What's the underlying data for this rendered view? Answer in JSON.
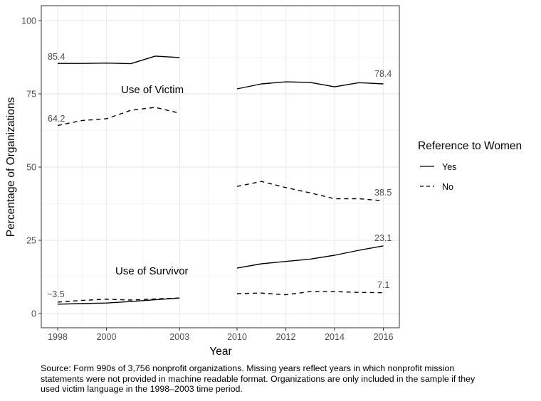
{
  "chart_data": {
    "type": "line",
    "xlabel": "Year",
    "ylabel": "Percentage of Organizations",
    "ylim": [
      -5,
      103
    ],
    "y_ticks": [
      "0",
      "25",
      "50",
      "75",
      "100"
    ],
    "y_tick_values": [
      0,
      25,
      50,
      75,
      100
    ],
    "x_ticks": [
      "1998",
      "2000",
      "2003",
      "2010",
      "2012",
      "2014",
      "2016"
    ],
    "x_tick_values": [
      1998,
      2000,
      2003,
      2010,
      2012,
      2014,
      2016
    ],
    "grid": true,
    "legend": {
      "title": "Reference to Women",
      "position": "right",
      "entries": [
        {
          "label": "Yes",
          "linestyle": "solid"
        },
        {
          "label": "No",
          "linestyle": "dashed"
        }
      ]
    },
    "group_labels": [
      "Use of Victim",
      "Use of Survivor"
    ],
    "annotations": [
      "85.4",
      "64.2",
      "~3.5",
      "78.4",
      "38.5",
      "23.1",
      "7.1"
    ],
    "series": [
      {
        "name": "Victim - Yes",
        "group": "Use of Victim",
        "reference": "Yes",
        "linestyle": "solid",
        "segments": [
          {
            "x": [
              1998,
              1999,
              2000,
              2001,
              2002,
              2003
            ],
            "y": [
              85.4,
              85.4,
              85.5,
              85.3,
              87.9,
              87.4
            ]
          },
          {
            "x": [
              2010,
              2011,
              2012,
              2013,
              2014,
              2015,
              2016
            ],
            "y": [
              76.7,
              78.4,
              79.1,
              78.9,
              77.4,
              78.8,
              78.4
            ]
          }
        ]
      },
      {
        "name": "Victim - No",
        "group": "Use of Victim",
        "reference": "No",
        "linestyle": "dashed",
        "segments": [
          {
            "x": [
              1998,
              1999,
              2000,
              2001,
              2002,
              2003
            ],
            "y": [
              64.2,
              65.9,
              66.5,
              69.4,
              70.4,
              68.4
            ]
          },
          {
            "x": [
              2010,
              2011,
              2012,
              2013,
              2014,
              2015,
              2016
            ],
            "y": [
              43.4,
              45.1,
              43.0,
              41.2,
              39.2,
              39.2,
              38.5
            ]
          }
        ]
      },
      {
        "name": "Survivor - Yes",
        "group": "Use of Survivor",
        "reference": "Yes",
        "linestyle": "solid",
        "segments": [
          {
            "x": [
              1998,
              1999,
              2000,
              2001,
              2002,
              2003
            ],
            "y": [
              3.2,
              3.4,
              3.6,
              4.1,
              4.7,
              5.3
            ]
          },
          {
            "x": [
              2010,
              2011,
              2012,
              2013,
              2014,
              2015,
              2016
            ],
            "y": [
              15.5,
              17.0,
              17.8,
              18.6,
              19.9,
              21.6,
              23.1
            ]
          }
        ]
      },
      {
        "name": "Survivor - No",
        "group": "Use of Survivor",
        "reference": "No",
        "linestyle": "dashed",
        "segments": [
          {
            "x": [
              1998,
              1999,
              2000,
              2001,
              2002,
              2003
            ],
            "y": [
              3.9,
              4.5,
              4.9,
              4.6,
              5.0,
              5.3
            ]
          },
          {
            "x": [
              2010,
              2011,
              2012,
              2013,
              2014,
              2015,
              2016
            ],
            "y": [
              6.8,
              7.0,
              6.4,
              7.5,
              7.5,
              7.2,
              7.1
            ]
          }
        ]
      }
    ]
  },
  "caption": "Source: Form 990s of 3,756 nonprofit organizations. Missing years reflect years in which nonprofit mission statements were not provided in machine readable format. Organizations are only included in the sample if they used victim language in the 1998–2003 time period."
}
